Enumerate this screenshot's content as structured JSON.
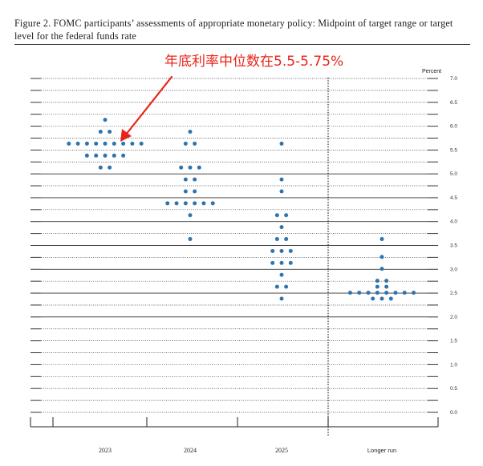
{
  "figure_title": "Figure 2.  FOMC participants’ assessments of appropriate monetary policy:  Midpoint of target range or target level for the federal funds rate",
  "annotation": "年底利率中位数在5.5-5.75%",
  "colors": {
    "dots": "#2f74ae",
    "annotation": "#e8241a",
    "grid": "#333333"
  },
  "chart_data": {
    "type": "scatter",
    "title": "FOMC participants’ assessments of appropriate monetary policy: Midpoint of target range or target level for the federal funds rate",
    "ylabel": "Percent",
    "ylim": [
      0,
      7
    ],
    "yticks": [
      "0.0",
      "0.5",
      "1.0",
      "1.5",
      "2.0",
      "2.5",
      "3.0",
      "3.5",
      "4.0",
      "4.5",
      "5.0",
      "5.5",
      "6.0",
      "6.5",
      "7.0"
    ],
    "categories": [
      "2023",
      "2024",
      "2025",
      "Longer run"
    ],
    "grid": true,
    "dots": [
      {
        "category": "2023",
        "counts": [
          {
            "y": 6.125,
            "n": 1
          },
          {
            "y": 5.875,
            "n": 2
          },
          {
            "y": 5.625,
            "n": 9
          },
          {
            "y": 5.375,
            "n": 5
          },
          {
            "y": 5.125,
            "n": 2
          }
        ]
      },
      {
        "category": "2024",
        "counts": [
          {
            "y": 5.875,
            "n": 1
          },
          {
            "y": 5.625,
            "n": 2
          },
          {
            "y": 5.125,
            "n": 3
          },
          {
            "y": 4.875,
            "n": 2
          },
          {
            "y": 4.625,
            "n": 2
          },
          {
            "y": 4.375,
            "n": 6
          },
          {
            "y": 4.125,
            "n": 1
          },
          {
            "y": 3.625,
            "n": 1
          }
        ]
      },
      {
        "category": "2025",
        "counts": [
          {
            "y": 5.625,
            "n": 1
          },
          {
            "y": 4.875,
            "n": 1
          },
          {
            "y": 4.625,
            "n": 1
          },
          {
            "y": 4.125,
            "n": 2
          },
          {
            "y": 3.875,
            "n": 1
          },
          {
            "y": 3.625,
            "n": 2
          },
          {
            "y": 3.375,
            "n": 3
          },
          {
            "y": 3.125,
            "n": 3
          },
          {
            "y": 2.875,
            "n": 1
          },
          {
            "y": 2.625,
            "n": 2
          },
          {
            "y": 2.375,
            "n": 1
          }
        ]
      },
      {
        "category": "Longer run",
        "counts": [
          {
            "y": 3.625,
            "n": 1
          },
          {
            "y": 3.25,
            "n": 1
          },
          {
            "y": 3.0,
            "n": 1
          },
          {
            "y": 2.75,
            "n": 2
          },
          {
            "y": 2.625,
            "n": 2
          },
          {
            "y": 2.5,
            "n": 8
          },
          {
            "y": 2.375,
            "n": 3
          }
        ]
      }
    ]
  }
}
